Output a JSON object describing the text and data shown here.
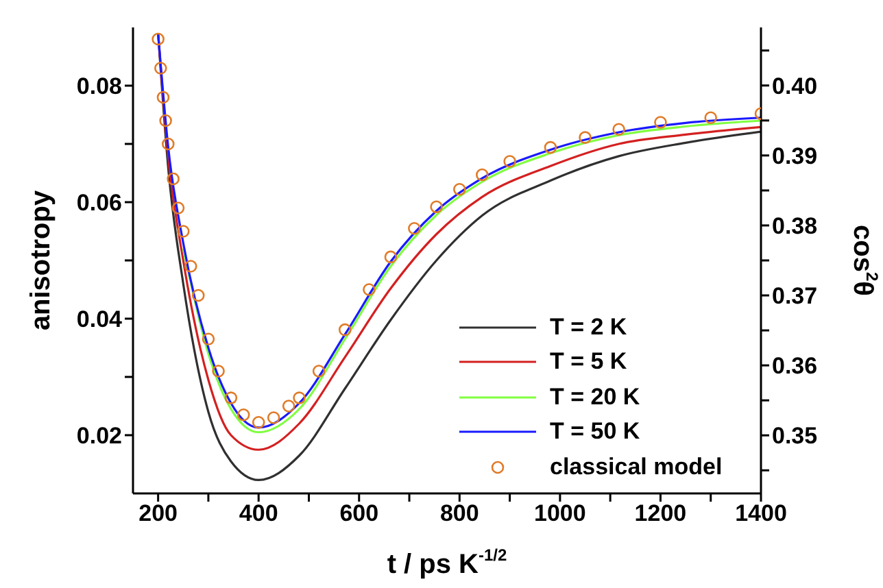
{
  "chart_data": {
    "type": "line",
    "xlabel": "t / ps K$^{-1/2}$",
    "ylabel": "anisotropy",
    "y2label": "cos$^{2}$θ",
    "xlim": [
      150,
      1400
    ],
    "xticks": [
      200,
      {
        "value": 300,
        "label": null
      },
      400,
      {
        "value": 500,
        "label": null
      },
      600,
      {
        "value": 700,
        "label": null
      },
      800,
      {
        "value": 900,
        "label": null
      },
      1000,
      {
        "value": 1100,
        "label": null
      },
      1200,
      {
        "value": 1300,
        "label": null
      },
      1400
    ],
    "ylim": [
      0.01,
      0.09
    ],
    "yticks": [
      0.02,
      {
        "value": 0.03,
        "label": null
      },
      0.04,
      {
        "value": 0.05,
        "label": null
      },
      0.06,
      {
        "value": 0.07,
        "label": null
      },
      0.08
    ],
    "y2lim": [
      0.3417,
      0.4083
    ],
    "y2ticks": [
      {
        "value": 0.345,
        "label": null
      },
      {
        "value": 0.35,
        "label": "0.35"
      },
      {
        "value": 0.355,
        "label": null
      },
      {
        "value": 0.36,
        "label": "0.36"
      },
      {
        "value": 0.365,
        "label": null
      },
      {
        "value": 0.37,
        "label": "0.37"
      },
      {
        "value": 0.375,
        "label": null
      },
      {
        "value": 0.38,
        "label": "0.38"
      },
      {
        "value": 0.385,
        "label": null
      },
      {
        "value": 0.39,
        "label": "0.39"
      },
      {
        "value": 0.395,
        "label": null
      },
      {
        "value": 0.4,
        "label": "0.40"
      },
      {
        "value": 0.405,
        "label": null
      }
    ],
    "grid": false,
    "legend": "bottom right",
    "line_style": "solid",
    "series": [
      {
        "name": "T = 2 K",
        "color": "#303030",
        "x": [
          200,
          220,
          250,
          300,
          345,
          400,
          481,
          572,
          663,
          754,
          845,
          981,
          1117,
          1250,
          1400
        ],
        "values": [
          0.089,
          0.066,
          0.046,
          0.024,
          0.0155,
          0.0123,
          0.0165,
          0.028,
          0.0398,
          0.05,
          0.0577,
          0.0637,
          0.0679,
          0.0702,
          0.0721
        ]
      },
      {
        "name": "T = 5 K",
        "color": "#d42020",
        "x": [
          200,
          220,
          250,
          300,
          345,
          400,
          481,
          572,
          663,
          754,
          845,
          981,
          1117,
          1250,
          1400
        ],
        "values": [
          0.089,
          0.068,
          0.05,
          0.0295,
          0.02,
          0.0175,
          0.022,
          0.0334,
          0.0452,
          0.0545,
          0.0609,
          0.0662,
          0.07,
          0.0716,
          0.0729
        ]
      },
      {
        "name": "T = 20 K",
        "color": "#80ff40",
        "x": [
          250,
          300,
          345,
          400,
          481,
          572,
          663,
          754,
          845,
          981,
          1117,
          1250,
          1400
        ],
        "values": [
          0.052,
          0.034,
          0.0245,
          0.0205,
          0.0245,
          0.0365,
          0.049,
          0.0578,
          0.0635,
          0.0684,
          0.0715,
          0.073,
          0.074
        ]
      },
      {
        "name": "T = 50 K",
        "color": "#1a1aff",
        "x": [
          200,
          220,
          250,
          300,
          345,
          400,
          481,
          572,
          663,
          754,
          845,
          981,
          1117,
          1250,
          1400
        ],
        "values": [
          0.089,
          0.0695,
          0.053,
          0.035,
          0.0255,
          0.0213,
          0.0255,
          0.0373,
          0.0498,
          0.0585,
          0.0641,
          0.069,
          0.072,
          0.0736,
          0.0745
        ]
      },
      {
        "name": "classical model",
        "type": "scatter",
        "marker": "circle",
        "color": "#e07b28",
        "x": [
          200,
          205,
          210,
          215,
          220,
          230,
          240,
          250,
          265,
          280,
          300,
          320,
          345,
          370,
          400,
          430,
          460,
          481,
          520,
          572,
          620,
          663,
          710,
          754,
          800,
          845,
          900,
          981,
          1050,
          1117,
          1200,
          1300,
          1400
        ],
        "values": [
          0.088,
          0.083,
          0.078,
          0.074,
          0.07,
          0.064,
          0.059,
          0.055,
          0.049,
          0.044,
          0.0365,
          0.031,
          0.0264,
          0.0235,
          0.0222,
          0.023,
          0.025,
          0.0264,
          0.031,
          0.0381,
          0.045,
          0.0506,
          0.0555,
          0.0592,
          0.0622,
          0.0647,
          0.067,
          0.0694,
          0.0711,
          0.0725,
          0.0737,
          0.0745,
          0.0752
        ]
      }
    ]
  }
}
